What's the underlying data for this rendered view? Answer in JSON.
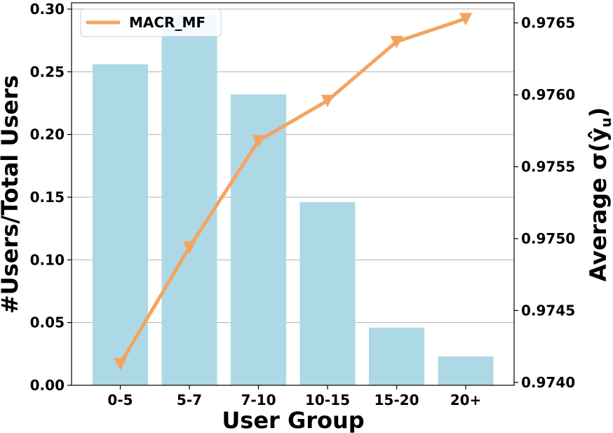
{
  "chart_data": {
    "type": "bar+line",
    "categories": [
      "0-5",
      "5-7",
      "7-10",
      "10-15",
      "15-20",
      "20+"
    ],
    "bar_series": {
      "axis": "left",
      "color": "#add8e6",
      "values": [
        0.256,
        0.295,
        0.232,
        0.146,
        0.046,
        0.023
      ]
    },
    "line_series": {
      "name": "MACR_MF",
      "axis": "right",
      "color": "#f4a460",
      "marker": "triangle-down",
      "values": [
        0.97413,
        0.97494,
        0.97568,
        0.97596,
        0.97637,
        0.97653
      ]
    },
    "xlabel": "User Group",
    "ylabel_left": "#Users/Total Users",
    "ylabel_right": "Average σ(ŷ",
    "ylabel_right_subscript": "u",
    "ylabel_right_suffix": ")",
    "ylim_left": [
      0.0,
      0.305
    ],
    "ylim_right": [
      0.97398,
      0.97664
    ],
    "yticks_left": [
      "0.00",
      "0.05",
      "0.10",
      "0.15",
      "0.20",
      "0.25",
      "0.30"
    ],
    "yticks_right": [
      "0.9740",
      "0.9745",
      "0.9750",
      "0.9755",
      "0.9760",
      "0.9765"
    ],
    "grid": "horizontal-left",
    "legend_position": "top-left"
  }
}
